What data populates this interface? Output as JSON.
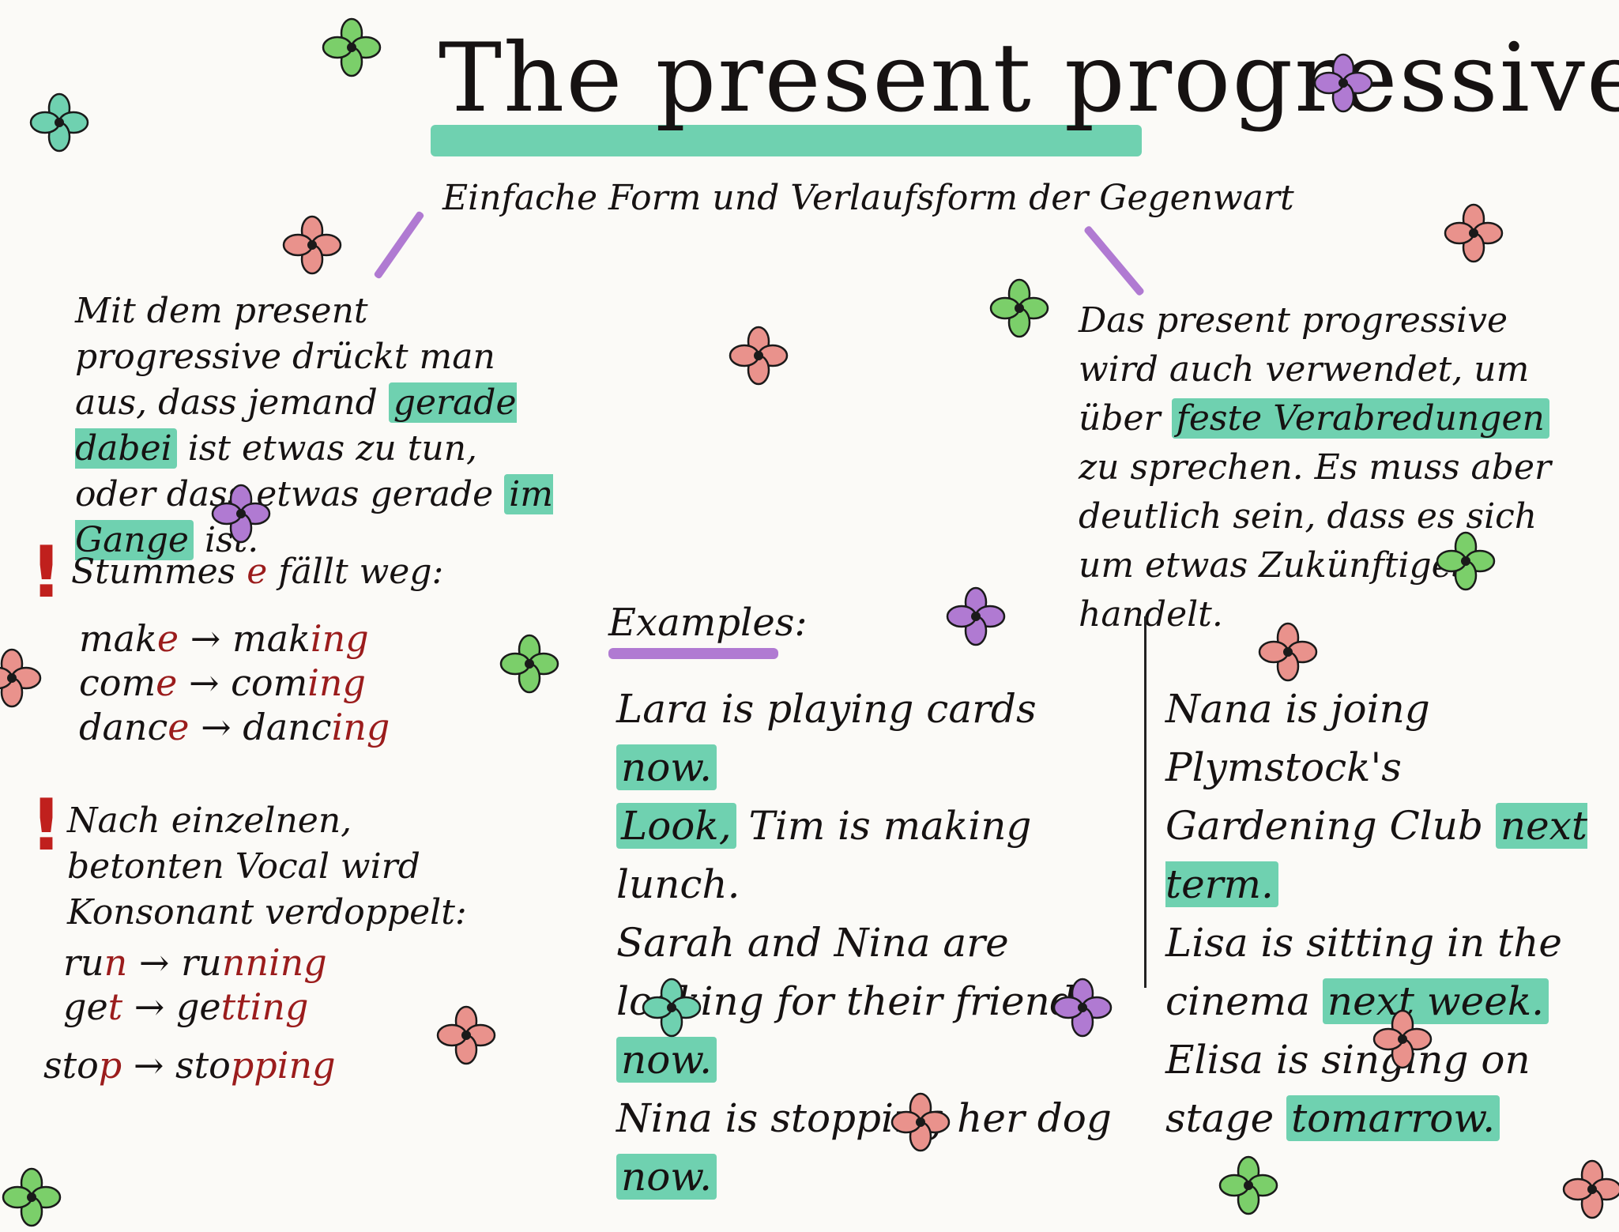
{
  "title": {
    "text": "The present progressive",
    "subtitle": "Einfache Form und Verlaufsform der Gegenwart"
  },
  "left_note": {
    "part1": "Mit dem present progressive drückt man aus, dass jemand",
    "hl1": "gerade dabei",
    "part2": "ist etwas zu tun, oder dass etwas gerade",
    "hl2": "im Gange",
    "part3": "ist."
  },
  "rule1": {
    "mark": "!",
    "prefix": "Stummes",
    "letter": "e",
    "suffix": "fällt weg:",
    "rows": [
      {
        "base": "mak",
        "base_red": "e",
        "arrow": "→",
        "result": "mak",
        "result_red": "ing"
      },
      {
        "base": "com",
        "base_red": "e",
        "arrow": "→",
        "result": "com",
        "result_red": "ing"
      },
      {
        "base": "danc",
        "base_red": "e",
        "arrow": "→",
        "result": "danc",
        "result_red": "ing"
      }
    ]
  },
  "rule2": {
    "mark": "!",
    "text": "Nach einzelnen, betonten Vocal wird Konsonant verdoppelt:",
    "rows": [
      {
        "base": "ru",
        "base_red": "n",
        "arrow": "→",
        "result": "ru",
        "result_red": "nning"
      },
      {
        "base": "ge",
        "base_red": "t",
        "arrow": "→",
        "result": "ge",
        "result_red": "tting"
      },
      {
        "base": "sto",
        "base_red": "p",
        "arrow": "→",
        "result": "sto",
        "result_red": "pping"
      }
    ]
  },
  "right_note": {
    "part1": "Das present progressive wird auch verwendet, um über",
    "hl1": "feste Verabredungen",
    "part2": "zu sprechen. Es muss aber deutlich sein, dass es sich um etwas Zukünftiges handelt."
  },
  "examples": {
    "heading": "Examples:",
    "left": [
      {
        "pre": "Lara is playing cards ",
        "hl": "now.",
        "post": ""
      },
      {
        "pre": "",
        "hl": "Look,",
        "post": " Tim is making lunch."
      },
      {
        "pre": "Sarah and Nina are looking for their friend ",
        "hl": "now.",
        "post": ""
      },
      {
        "pre": "Nina is stopping her dog ",
        "hl": "now.",
        "post": ""
      }
    ],
    "right": [
      {
        "pre": "Nana is joing Plymstock's Gardening Club ",
        "hl": "next term.",
        "post": ""
      },
      {
        "pre": "Lisa is sitting in the cinema ",
        "hl": "next week.",
        "post": ""
      },
      {
        "pre": "Elisa is singing on stage ",
        "hl": "tomarrow.",
        "post": ""
      }
    ]
  },
  "colors": {
    "teal": "#6fd1b0",
    "purple": "#b07ad2",
    "pink": "#e9928c",
    "green": "#7bcf6a",
    "red_ink": "#9b1c1c"
  }
}
